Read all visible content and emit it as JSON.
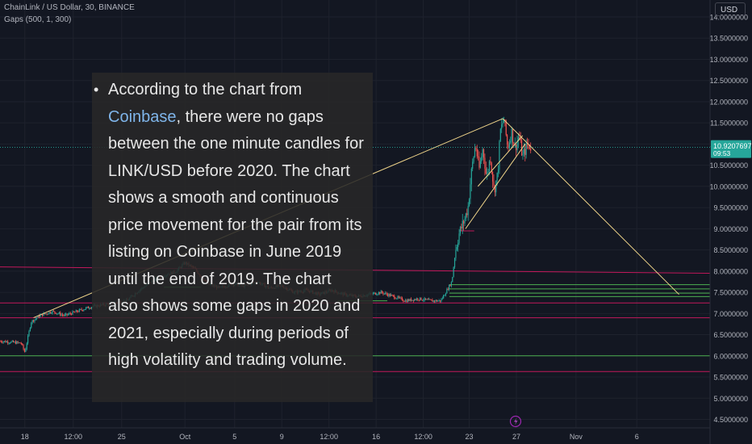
{
  "header": {
    "title": "ChainLink / US Dollar, 30, BINANCE",
    "indicator": "Gaps (500, 1, 300)"
  },
  "currency_button": "USD",
  "price_tag": {
    "price": "10.9207697",
    "countdown": "09:53"
  },
  "overlay": {
    "bullet": "•",
    "before_link": "According to the chart from ",
    "link": "Coinbase",
    "after_link": ", there were no gaps between the one minute candles for LINK/USD before 2020. The chart shows a smooth and continuous price movement for the pair from its listing on Coinbase in June 2019 until the end of 2019. The chart also shows some gaps in 2020 and 2021, especially during periods of high volatility and trading volume."
  },
  "colors": {
    "background": "#131722",
    "up": "#26a69a",
    "down": "#ef5350",
    "gap_green": "#4caf50",
    "gap_red": "#c2185b",
    "trendline": "#f0d58a",
    "grid": "#1e222d",
    "axis_text": "#b2b5be"
  },
  "chart_data": {
    "type": "candlestick",
    "x_ticks": [
      {
        "label": "18",
        "t": 0.3
      },
      {
        "label": "12:00",
        "t": 4.2
      },
      {
        "label": "25",
        "t": 8.1
      },
      {
        "label": "Oct",
        "t": 13.2
      },
      {
        "label": "5",
        "t": 17.2
      },
      {
        "label": "9",
        "t": 21.0
      },
      {
        "label": "12:00",
        "t": 24.8
      },
      {
        "label": "16",
        "t": 28.6
      },
      {
        "label": "12:00",
        "t": 32.4
      },
      {
        "label": "23",
        "t": 36.1
      },
      {
        "label": "27",
        "t": 39.9
      },
      {
        "label": "Nov",
        "t": 44.7
      },
      {
        "label": "6",
        "t": 49.6
      }
    ],
    "y_ticks": [
      "14.0000000",
      "13.5000000",
      "13.0000000",
      "12.5000000",
      "12.0000000",
      "11.5000000",
      "11.0000000",
      "10.5000000",
      "10.0000000",
      "9.5000000",
      "9.0000000",
      "8.5000000",
      "8.0000000",
      "7.5000000",
      "7.0000000",
      "6.5000000",
      "6.0000000",
      "5.5000000",
      "5.0000000",
      "4.5000000"
    ],
    "y_range": [
      4.3,
      14.4
    ],
    "x_range": [
      -1.7,
      55.5
    ],
    "current_price": 10.9207697,
    "price_path": [
      [
        -1.7,
        6.35
      ],
      [
        0.0,
        6.3
      ],
      [
        0.3,
        6.08
      ],
      [
        0.8,
        6.8
      ],
      [
        1.5,
        6.95
      ],
      [
        2.5,
        7.05
      ],
      [
        3.5,
        6.95
      ],
      [
        4.5,
        7.05
      ],
      [
        5.5,
        7.15
      ],
      [
        6.5,
        7.2
      ],
      [
        7.5,
        7.25
      ],
      [
        8.5,
        7.3
      ],
      [
        9.5,
        7.55
      ],
      [
        10.5,
        7.75
      ],
      [
        11.5,
        7.9
      ],
      [
        12.5,
        8.0
      ],
      [
        13.2,
        8.2
      ],
      [
        14.0,
        8.05
      ],
      [
        15.0,
        7.7
      ],
      [
        16.0,
        7.6
      ],
      [
        17.0,
        7.7
      ],
      [
        18.0,
        7.65
      ],
      [
        19.0,
        7.75
      ],
      [
        20.0,
        7.6
      ],
      [
        21.0,
        7.65
      ],
      [
        22.0,
        7.5
      ],
      [
        23.0,
        7.55
      ],
      [
        24.0,
        7.45
      ],
      [
        25.0,
        7.55
      ],
      [
        26.0,
        7.45
      ],
      [
        27.0,
        7.4
      ],
      [
        28.0,
        7.45
      ],
      [
        29.0,
        7.5
      ],
      [
        30.0,
        7.4
      ],
      [
        31.0,
        7.3
      ],
      [
        32.0,
        7.35
      ],
      [
        33.0,
        7.3
      ],
      [
        33.8,
        7.3
      ],
      [
        34.3,
        7.55
      ],
      [
        34.7,
        7.75
      ],
      [
        35.0,
        8.5
      ],
      [
        35.3,
        8.9
      ],
      [
        35.7,
        9.2
      ],
      [
        36.0,
        9.5
      ],
      [
        36.3,
        10.4
      ],
      [
        36.6,
        11.0
      ],
      [
        36.9,
        10.4
      ],
      [
        37.2,
        10.9
      ],
      [
        37.5,
        10.2
      ],
      [
        37.8,
        10.7
      ],
      [
        38.1,
        9.9
      ],
      [
        38.4,
        10.3
      ],
      [
        38.6,
        11.3
      ],
      [
        38.9,
        11.6
      ],
      [
        39.2,
        10.9
      ],
      [
        39.5,
        11.3
      ],
      [
        39.8,
        10.9
      ],
      [
        40.1,
        11.2
      ],
      [
        40.4,
        10.7
      ],
      [
        40.8,
        11.0
      ],
      [
        41.1,
        10.92
      ]
    ],
    "gap_lines": [
      {
        "color": "green",
        "price": 7.68,
        "t_start": 34.5
      },
      {
        "color": "green",
        "price": 7.58,
        "t_start": 34.5
      },
      {
        "color": "green",
        "price": 7.48,
        "t_start": 34.5
      },
      {
        "color": "green",
        "price": 7.4,
        "t_start": 34.5
      },
      {
        "color": "green",
        "price": 6.0,
        "t_start": -1.7
      },
      {
        "color": "green",
        "price": 7.62,
        "t_start": 11.5,
        "t_end": 14.5
      },
      {
        "color": "green",
        "price": 7.3,
        "t_start": 25.5,
        "t_end": 29.5
      },
      {
        "color": "red",
        "price": 7.25,
        "t_start": -1.7
      },
      {
        "color": "red",
        "price": 6.9,
        "t_start": -1.7
      },
      {
        "color": "red",
        "price": 5.63,
        "t_start": -1.7
      },
      {
        "color": "red",
        "price": 8.1,
        "t_start": -1.7,
        "slope_end": 7.95
      },
      {
        "color": "red",
        "price": 8.95,
        "t_start": 35.3,
        "t_end": 36.5
      }
    ],
    "trendlines": [
      {
        "from": [
          1.0,
          6.9
        ],
        "to": [
          38.8,
          11.6
        ]
      },
      {
        "from": [
          38.8,
          11.6
        ],
        "to": [
          53.0,
          7.45
        ]
      },
      {
        "from": [
          35.8,
          9.0
        ],
        "to": [
          40.6,
          11.0
        ]
      },
      {
        "from": [
          36.8,
          10.0
        ],
        "to": [
          40.4,
          11.2
        ]
      }
    ],
    "grid": true
  }
}
